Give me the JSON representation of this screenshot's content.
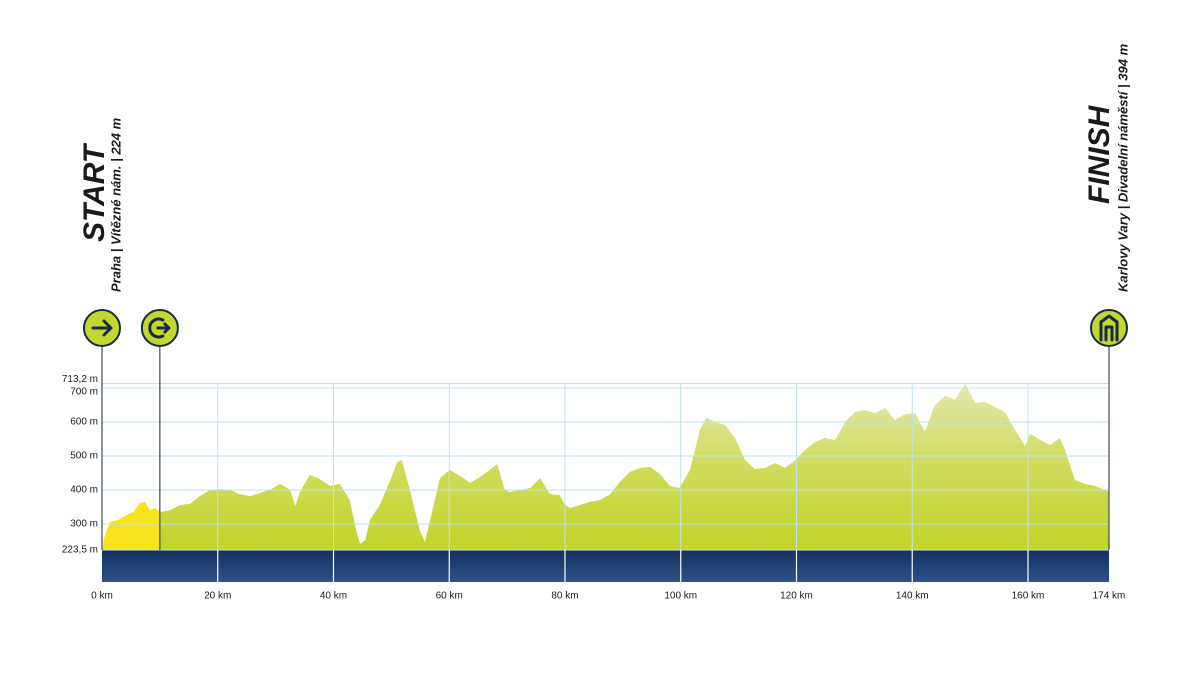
{
  "chart_data": {
    "type": "area",
    "start_title": "START",
    "start_subtitle": "Praha | Vítězné nám. | 224 m",
    "finish_title": "FINISH",
    "finish_subtitle": "Karlovy Vary | Divadelní náměstí | 394 m",
    "x": [
      0,
      0.5,
      1.4,
      2.8,
      4.0,
      5.4,
      6.6,
      7.4,
      8.3,
      9.2,
      10.0,
      11.8,
      13.5,
      15.2,
      16.9,
      18.7,
      20.4,
      22.1,
      23.8,
      25.6,
      27.3,
      29.0,
      30.8,
      32.5,
      33.4,
      34.2,
      35.9,
      37.3,
      39.4,
      41.1,
      42.8,
      43.9,
      44.6,
      45.5,
      46.3,
      48.0,
      49.8,
      51.0,
      51.8,
      53.2,
      54.9,
      55.8,
      56.7,
      58.4,
      60.1,
      61.9,
      63.6,
      65.3,
      67.0,
      68.3,
      69.6,
      70.5,
      72.2,
      74.0,
      75.7,
      77.4,
      79.1,
      80.0,
      80.9,
      82.6,
      84.3,
      86.1,
      87.8,
      89.5,
      91.2,
      93.0,
      94.7,
      96.4,
      98.1,
      99.8,
      101.6,
      103.3,
      104.4,
      105.9,
      107.7,
      109.4,
      111.1,
      112.8,
      114.6,
      116.3,
      118.0,
      119.8,
      121.5,
      123.2,
      124.9,
      126.7,
      128.4,
      130.1,
      131.8,
      133.6,
      135.3,
      137.0,
      138.8,
      140.5,
      142.2,
      143.9,
      145.7,
      147.4,
      149.1,
      150.9,
      152.6,
      154.3,
      156.0,
      157.8,
      159.5,
      160.4,
      162.1,
      163.8,
      165.5,
      166.4,
      168.1,
      169.9,
      171.6,
      173.3,
      174.0
    ],
    "series": [
      {
        "color": "#f7e41e",
        "values": [
          224,
          268,
          306,
          312,
          324,
          335,
          362,
          365,
          341,
          347,
          335,
          null,
          null,
          null,
          null,
          null,
          null,
          null,
          null,
          null,
          null,
          null,
          null,
          null,
          null,
          null,
          null,
          null,
          null,
          null,
          null,
          null,
          null,
          null,
          null,
          null,
          null,
          null,
          null,
          null,
          null,
          null,
          null,
          null,
          null,
          null,
          null,
          null,
          null,
          null,
          null,
          null,
          null,
          null,
          null,
          null,
          null,
          null,
          null,
          null,
          null,
          null,
          null,
          null,
          null,
          null,
          null,
          null,
          null,
          null,
          null,
          null,
          null,
          null,
          null,
          null,
          null,
          null,
          null,
          null,
          null,
          null,
          null,
          null,
          null,
          null,
          null,
          null,
          null,
          null,
          null,
          null,
          null,
          null,
          null,
          null,
          null,
          null,
          null,
          null,
          null,
          null,
          null,
          null,
          null,
          null,
          null,
          null,
          null,
          null,
          null,
          null,
          null,
          null,
          null
        ]
      },
      {
        "color": "#c5d52c",
        "values": [
          null,
          null,
          null,
          null,
          null,
          null,
          null,
          null,
          null,
          null,
          335,
          341,
          356,
          359,
          382,
          400,
          403,
          400,
          388,
          382,
          391,
          400,
          418,
          400,
          353,
          394,
          444,
          435,
          412,
          418,
          371,
          282,
          241,
          253,
          312,
          356,
          429,
          482,
          488,
          400,
          282,
          247,
          312,
          435,
          459,
          441,
          421,
          438,
          459,
          476,
          400,
          394,
          400,
          406,
          435,
          388,
          385,
          356,
          347,
          356,
          365,
          371,
          388,
          424,
          453,
          465,
          468,
          447,
          412,
          406,
          459,
          576,
          612,
          600,
          591,
          553,
          488,
          462,
          465,
          479,
          465,
          488,
          518,
          541,
          553,
          547,
          600,
          629,
          635,
          626,
          641,
          606,
          623,
          626,
          571,
          650,
          677,
          665,
          713,
          656,
          659,
          644,
          629,
          576,
          529,
          565,
          547,
          532,
          553,
          518,
          429,
          418,
          412,
          400,
          394
        ]
      }
    ],
    "xlim": [
      0,
      174
    ],
    "ylim": [
      223.5,
      713.2
    ],
    "xticks": [
      {
        "value": 0,
        "label": "0 km"
      },
      {
        "value": 20,
        "label": "20 km"
      },
      {
        "value": 40,
        "label": "40 km"
      },
      {
        "value": 60,
        "label": "60 km"
      },
      {
        "value": 80,
        "label": "80 km"
      },
      {
        "value": 100,
        "label": "100 km"
      },
      {
        "value": 120,
        "label": "120 km"
      },
      {
        "value": 140,
        "label": "140 km"
      },
      {
        "value": 160,
        "label": "160 km"
      },
      {
        "value": 174,
        "label": "174 km"
      }
    ],
    "yticks": [
      {
        "value": 223.5,
        "label": "223,5 m"
      },
      {
        "value": 300,
        "label": "300 m"
      },
      {
        "value": 400,
        "label": "400 m"
      },
      {
        "value": 500,
        "label": "500 m"
      },
      {
        "value": 600,
        "label": "600 m"
      },
      {
        "value": 700,
        "label": "700 m"
      },
      {
        "value": 713.2,
        "label": "713,2 m"
      }
    ],
    "markers": [
      0,
      10,
      174
    ],
    "grid": true
  }
}
